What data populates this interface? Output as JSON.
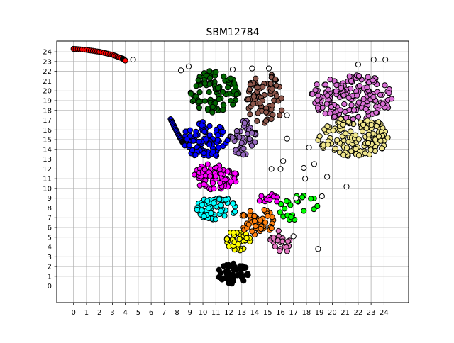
{
  "chart_data": {
    "type": "scatter",
    "title": "SBM12784",
    "xlabel": "",
    "ylabel": "",
    "xlim": [
      -1.3,
      25.9
    ],
    "ylim": [
      -1.7,
      25.1
    ],
    "x_ticks": [
      0,
      1,
      2,
      3,
      4,
      5,
      6,
      7,
      8,
      9,
      10,
      11,
      12,
      13,
      14,
      15,
      16,
      17,
      18,
      19,
      20,
      21,
      22,
      23,
      24
    ],
    "y_ticks": [
      0,
      1,
      2,
      3,
      4,
      5,
      6,
      7,
      8,
      9,
      10,
      11,
      12,
      13,
      14,
      15,
      16,
      17,
      18,
      19,
      20,
      21,
      22,
      23,
      24
    ],
    "grid": true,
    "legend": "none",
    "marker_edge_color": "#000000",
    "clusters": [
      {
        "color": "#ff0000",
        "shape": "arc",
        "points": [
          [
            0.0,
            24.3
          ],
          [
            1.0,
            24.2
          ],
          [
            2.0,
            24.0
          ],
          [
            3.0,
            23.7
          ],
          [
            3.8,
            23.3
          ],
          [
            4.0,
            23.1
          ]
        ]
      },
      {
        "color": "#0000ff",
        "shape": "line",
        "points": [
          [
            7.5,
            17.1
          ],
          [
            7.8,
            16.3
          ],
          [
            8.1,
            15.5
          ],
          [
            8.4,
            14.8
          ],
          [
            8.6,
            14.4
          ]
        ]
      },
      {
        "color": "#000000",
        "shape": "blob",
        "center": [
          12.3,
          1.3
        ],
        "spread": [
          1.2,
          1.1
        ],
        "count": 45
      },
      {
        "color": "#ffff00",
        "shape": "blob",
        "center": [
          12.6,
          4.6
        ],
        "spread": [
          1.1,
          1.0
        ],
        "count": 40
      },
      {
        "color": "#ff7f0e",
        "shape": "blob",
        "center": [
          14.2,
          6.6
        ],
        "spread": [
          1.3,
          1.4
        ],
        "count": 50
      },
      {
        "color": "#00ffff",
        "shape": "blob",
        "center": [
          11.0,
          8.0
        ],
        "spread": [
          1.6,
          1.2
        ],
        "count": 65
      },
      {
        "color": "#ff00ff",
        "shape": "blob",
        "center": [
          11.0,
          11.2
        ],
        "spread": [
          1.7,
          1.4
        ],
        "count": 80
      },
      {
        "color": "#ff00ff",
        "shape": "blob",
        "center": [
          15.0,
          8.9
        ],
        "spread": [
          0.8,
          0.6
        ],
        "count": 12
      },
      {
        "color": "#0000ff",
        "shape": "blob",
        "center": [
          10.2,
          15.0
        ],
        "spread": [
          1.8,
          1.9
        ],
        "count": 90
      },
      {
        "color": "#9467bd",
        "shape": "blob",
        "center": [
          13.1,
          15.2
        ],
        "spread": [
          1.0,
          1.9
        ],
        "count": 45
      },
      {
        "color": "#006400",
        "shape": "blob",
        "center": [
          10.9,
          19.9
        ],
        "spread": [
          1.9,
          2.2
        ],
        "count": 95
      },
      {
        "color": "#8c564b",
        "shape": "blob",
        "center": [
          14.8,
          19.2
        ],
        "spread": [
          1.5,
          2.6
        ],
        "count": 80
      },
      {
        "color": "#00ff00",
        "shape": "blob",
        "center": [
          17.2,
          8.3
        ],
        "spread": [
          1.7,
          1.6
        ],
        "count": 22
      },
      {
        "color": "#e377c2",
        "shape": "blob",
        "center": [
          16.1,
          4.6
        ],
        "spread": [
          0.9,
          1.2
        ],
        "count": 20
      },
      {
        "color": "#da70d6",
        "shape": "blob",
        "center": [
          21.5,
          19.4
        ],
        "spread": [
          3.2,
          2.4
        ],
        "count": 170
      },
      {
        "color": "#f0e68c",
        "shape": "blob",
        "center": [
          21.6,
          15.3
        ],
        "spread": [
          2.8,
          2.1
        ],
        "count": 150
      },
      {
        "color": "#ffffff",
        "shape": "points",
        "points": [
          [
            4.6,
            23.2
          ],
          [
            8.3,
            22.1
          ],
          [
            8.9,
            22.5
          ],
          [
            12.3,
            22.2
          ],
          [
            13.8,
            22.3
          ],
          [
            16.5,
            17.5
          ],
          [
            16.5,
            15.1
          ],
          [
            15.3,
            12.0
          ],
          [
            16.2,
            12.8
          ],
          [
            17.8,
            12.1
          ],
          [
            17.9,
            11.0
          ],
          [
            18.6,
            12.5
          ],
          [
            19.6,
            11.2
          ],
          [
            19.2,
            9.2
          ],
          [
            18.2,
            14.2
          ],
          [
            21.1,
            10.2
          ],
          [
            18.9,
            3.8
          ],
          [
            17.0,
            5.1
          ],
          [
            23.2,
            23.2
          ],
          [
            24.1,
            23.2
          ],
          [
            16.0,
            12.0
          ],
          [
            17.2,
            9.0
          ],
          [
            22.0,
            22.7
          ],
          [
            15.1,
            22.3
          ]
        ]
      }
    ]
  }
}
